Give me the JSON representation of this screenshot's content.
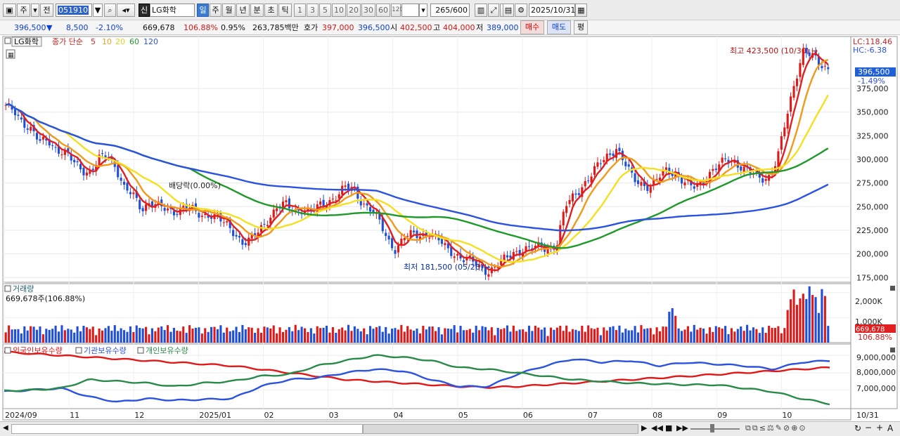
{
  "toolbar": {
    "period_buttons": [
      "주",
      "전"
    ],
    "code": "051910",
    "market_badge": "신",
    "stock_name": "LG화학",
    "timeframes": [
      "일",
      "주",
      "월",
      "년",
      "분",
      "초",
      "틱"
    ],
    "minute_steps": [
      "1",
      "3",
      "5",
      "10",
      "20",
      "30",
      "60",
      "120"
    ],
    "count_display": "265",
    "count_total": "/600",
    "date": "2025/10/31"
  },
  "quote": {
    "price": "396,500",
    "change": "8,500",
    "change_pct": "-2.10%",
    "volume": "669,678",
    "volume_ratio": "106.88%",
    "turnover_pct": "0.95%",
    "amount": "263,785백만",
    "bid_label": "호가",
    "bid": "397,000",
    "ask": "396,500",
    "open_label": "시",
    "open": "402,500",
    "high_label": "고",
    "high": "404,000",
    "low_label": "저",
    "low": "389,000",
    "buy_label": "매수",
    "sell_label": "매도",
    "flat_label": "평"
  },
  "legend": {
    "stock": "LG화학",
    "ma_title": "종가 단순",
    "ma_periods": [
      "5",
      "10",
      "20",
      "60",
      "120"
    ],
    "ma_colors": [
      "#e02020",
      "#f09a1a",
      "#f4e020",
      "#1f9a2a",
      "#2b52e0"
    ]
  },
  "price_axis": {
    "lc": "LC:118.46",
    "hc": "HC:-6.38",
    "ticks": [
      "375,000",
      "350,000",
      "325,000",
      "300,000",
      "275,000",
      "250,000",
      "225,000",
      "200,000",
      "175,000"
    ],
    "last_price": "396,500",
    "last_change": "-1.49%"
  },
  "annotations": {
    "high": "최고 423,500 (10/30)",
    "low": "최저 181,500 (05/26)",
    "dividend": "배당락(0.00%)"
  },
  "volume_panel": {
    "title": "거래량",
    "current": "669,678주(106.88%)",
    "ticks": [
      "2,000K",
      "1,000K"
    ],
    "last_value": "669,678",
    "last_pct": "106.88%"
  },
  "holdings_panel": {
    "legend": [
      "외국인보유수량",
      "기관보유수량",
      "개인보유수량"
    ],
    "colors": [
      "#e01818",
      "#2b52e0",
      "#2a8a4a"
    ],
    "ticks": [
      "9,000,000",
      "8,000,000",
      "7,000,000"
    ]
  },
  "x_axis": {
    "labels": [
      "2024/09",
      "11",
      "12",
      "2025/01",
      "02",
      "03",
      "04",
      "05",
      "06",
      "07",
      "08",
      "09",
      "10"
    ],
    "end_label": "10/31"
  },
  "chart_data": {
    "type": "candlestick",
    "title": "LG화학",
    "period": "일",
    "date_range": [
      "2024/09",
      "2025/10/31"
    ],
    "ylim": [
      170000,
      430000
    ],
    "price_series": {
      "name": "close",
      "values": [
        355000,
        352000,
        340000,
        330000,
        318000,
        322000,
        310000,
        305000,
        298000,
        290000,
        285000,
        300000,
        305000,
        292000,
        268000,
        262000,
        248000,
        255000,
        250000,
        246000,
        245000,
        250000,
        246000,
        240000,
        243000,
        238000,
        230000,
        222000,
        212000,
        215000,
        225000,
        238000,
        250000,
        252000,
        245000,
        248000,
        245000,
        250000,
        255000,
        262000,
        270000,
        268000,
        255000,
        248000,
        235000,
        215000,
        205000,
        218000,
        220000,
        220000,
        222000,
        215000,
        205000,
        200000,
        195000,
        192000,
        185000,
        182000,
        188000,
        195000,
        202000,
        205000,
        205000,
        208000,
        206000,
        210000,
        250000,
        262000,
        272000,
        282000,
        295000,
        305000,
        312000,
        295000,
        280000,
        275000,
        270000,
        280000,
        290000,
        285000,
        275000,
        270000,
        275000,
        285000,
        292000,
        300000,
        298000,
        290000,
        285000,
        280000,
        282000,
        300000,
        340000,
        380000,
        415000,
        410000,
        400000,
        396500
      ]
    },
    "moving_averages": [
      {
        "name": "5",
        "color": "#e02020"
      },
      {
        "name": "10",
        "color": "#f09a1a"
      },
      {
        "name": "20",
        "color": "#f4e020"
      },
      {
        "name": "60",
        "color": "#1f9a2a"
      },
      {
        "name": "120",
        "color": "#2b52e0"
      }
    ],
    "volume": {
      "unit": "K",
      "ylim": [
        0,
        2300
      ],
      "last": 669.678
    },
    "holdings": {
      "ylim": [
        6000000,
        9500000
      ],
      "series": [
        {
          "name": "외국인보유수량",
          "values": [
            9200000,
            9100000,
            9000000,
            8900000,
            8800000,
            8700000,
            8600000,
            8500000,
            8400000,
            8200000,
            8000000,
            7800000,
            7600000,
            7500000,
            7400000,
            7300000,
            7200000,
            7150000,
            7200000,
            7300000,
            7400000,
            7500000,
            7600000,
            7700000,
            7800000,
            7900000,
            8000000,
            8100000,
            8200000,
            8300000
          ]
        },
        {
          "name": "기관보유수량",
          "values": [
            6900000,
            7000000,
            7100000,
            6600000,
            6300000,
            6500000,
            6400000,
            6450000,
            6500000,
            7200000,
            7600000,
            7700000,
            8000000,
            8200000,
            8100000,
            7600000,
            7200000,
            7200000,
            7900000,
            8400000,
            8800000,
            8600000,
            8700000,
            8400000,
            8600000,
            8500000,
            8400000,
            8200000,
            8600000,
            8700000
          ]
        },
        {
          "name": "개인보유수량",
          "values": [
            6950000,
            7000000,
            7100000,
            7600000,
            7500000,
            7400000,
            7200000,
            7400000,
            7500000,
            7800000,
            7900000,
            8400000,
            8700000,
            9000000,
            8900000,
            8700000,
            8300000,
            8200000,
            8000000,
            7800000,
            7600000,
            7500000,
            7400000,
            7350000,
            7300000,
            7300000,
            7100000,
            6900000,
            6500000,
            6200000
          ]
        }
      ]
    }
  }
}
